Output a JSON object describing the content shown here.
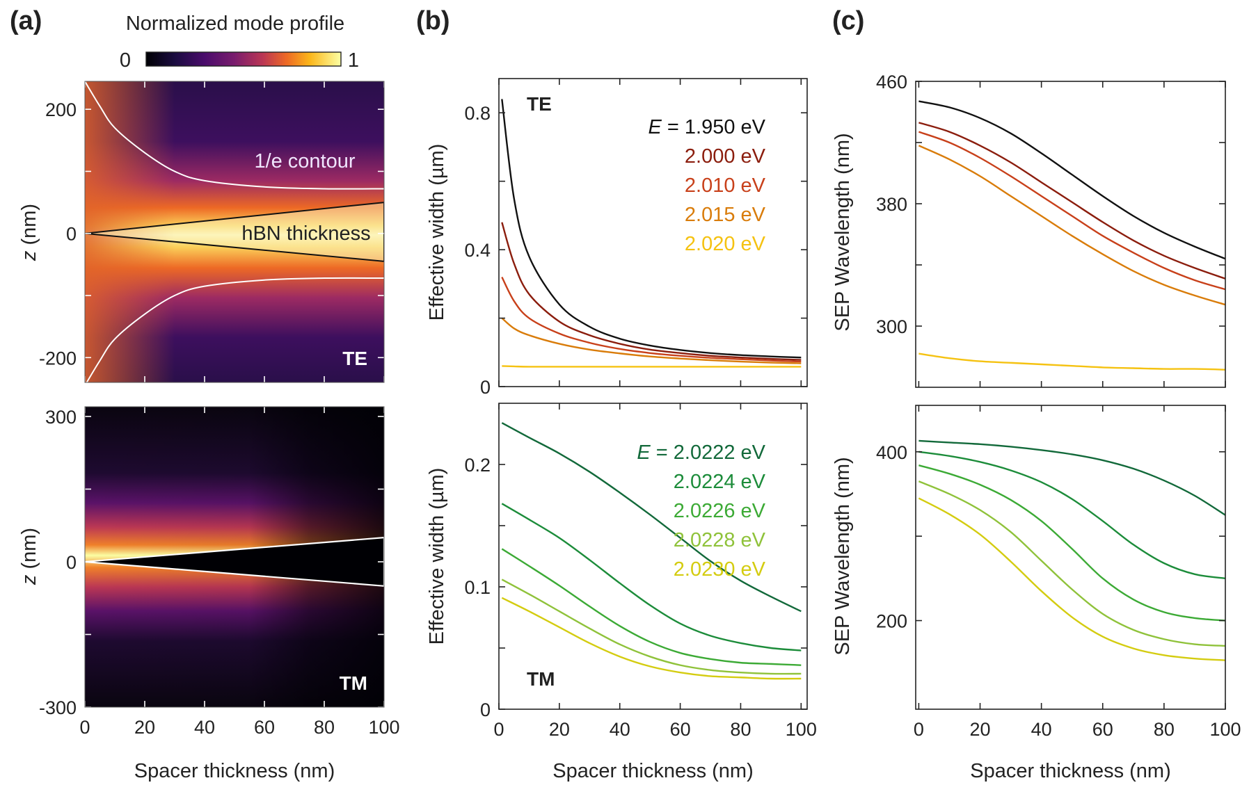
{
  "panel_labels": {
    "a": "(a)",
    "b": "(b)",
    "c": "(c)"
  },
  "colorbar": {
    "title": "Normalized mode profile",
    "min_label": "0",
    "max_label": "1"
  },
  "chart_data": [
    {
      "id": "a_te",
      "type": "heatmap",
      "panel": "(a)",
      "mode_label": "TE",
      "xlim": [
        0,
        100
      ],
      "ylim": [
        -240,
        245
      ],
      "xlabel": "Spacer thickness (nm)",
      "ylabel": "z (nm)",
      "yticks": [
        -200,
        0,
        200
      ],
      "annotations": {
        "contour": "1/e contour",
        "wedge": "hBN thickness"
      },
      "contour_1e": {
        "x": [
          0,
          5,
          10,
          20,
          30,
          40,
          60,
          80,
          100
        ],
        "z_upper": [
          245,
          205,
          170,
          130,
          100,
          85,
          75,
          72,
          72
        ]
      },
      "wedge": {
        "x": [
          0,
          100
        ],
        "z_top": [
          0,
          50
        ],
        "z_bottom": [
          0,
          -45
        ]
      }
    },
    {
      "id": "a_tm",
      "type": "heatmap",
      "panel": "(a)",
      "mode_label": "TM",
      "xlim": [
        0,
        100
      ],
      "ylim": [
        -300,
        320
      ],
      "xlabel": "Spacer thickness (nm)",
      "ylabel": "z (nm)",
      "xticks": [
        0,
        20,
        40,
        60,
        80,
        100
      ],
      "yticks": [
        -300,
        0,
        300
      ],
      "wedge": {
        "x": [
          0,
          100
        ],
        "z_top": [
          0,
          50
        ],
        "z_bottom": [
          0,
          -50
        ]
      }
    },
    {
      "id": "b_te",
      "type": "line",
      "panel": "(b)",
      "mode_label": "TE",
      "xlim": [
        0,
        102
      ],
      "ylim": [
        0,
        0.9
      ],
      "xlabel": "Spacer thickness (nm)",
      "ylabel": "Effective width (µm)",
      "yticks": [
        0,
        0.4,
        0.8
      ],
      "legend_title": "E = ",
      "x": [
        1,
        5,
        10,
        20,
        30,
        40,
        50,
        60,
        70,
        80,
        90,
        100
      ],
      "series": [
        {
          "name": "1.950 eV",
          "color": "#111111",
          "values": [
            0.84,
            0.55,
            0.38,
            0.24,
            0.175,
            0.14,
            0.12,
            0.107,
            0.098,
            0.092,
            0.088,
            0.085
          ]
        },
        {
          "name": "2.000 eV",
          "color": "#8b1d0d",
          "values": [
            0.48,
            0.36,
            0.27,
            0.19,
            0.15,
            0.125,
            0.108,
            0.098,
            0.09,
            0.085,
            0.081,
            0.078
          ]
        },
        {
          "name": "2.010 eV",
          "color": "#c8401a",
          "values": [
            0.32,
            0.25,
            0.2,
            0.155,
            0.128,
            0.11,
            0.098,
            0.09,
            0.084,
            0.08,
            0.076,
            0.073
          ]
        },
        {
          "name": "2.015 eV",
          "color": "#d97c0a",
          "values": [
            0.2,
            0.17,
            0.15,
            0.125,
            0.108,
            0.097,
            0.088,
            0.082,
            0.077,
            0.073,
            0.07,
            0.068
          ]
        },
        {
          "name": "2.020 eV",
          "color": "#f5c211",
          "values": [
            0.06,
            0.059,
            0.058,
            0.058,
            0.058,
            0.058,
            0.058,
            0.058,
            0.058,
            0.058,
            0.058,
            0.058
          ]
        }
      ]
    },
    {
      "id": "b_tm",
      "type": "line",
      "panel": "(b)",
      "mode_label": "TM",
      "xlim": [
        0,
        102
      ],
      "ylim": [
        0,
        0.25
      ],
      "xlabel": "Spacer thickness (nm)",
      "ylabel": "Effective width (µm)",
      "xticks": [
        0,
        20,
        40,
        60,
        80,
        100
      ],
      "yticks": [
        0,
        0.1,
        0.2
      ],
      "legend_title": "E = ",
      "x": [
        1,
        10,
        20,
        30,
        40,
        50,
        60,
        70,
        80,
        90,
        100
      ],
      "series": [
        {
          "name": "2.0222 eV",
          "color": "#12693a",
          "values": [
            0.234,
            0.222,
            0.209,
            0.194,
            0.177,
            0.159,
            0.14,
            0.121,
            0.105,
            0.092,
            0.08
          ]
        },
        {
          "name": "2.0224 eV",
          "color": "#1c8c3a",
          "values": [
            0.168,
            0.155,
            0.14,
            0.122,
            0.103,
            0.085,
            0.07,
            0.06,
            0.054,
            0.05,
            0.048
          ]
        },
        {
          "name": "2.0226 eV",
          "color": "#3caa35",
          "values": [
            0.131,
            0.117,
            0.101,
            0.084,
            0.068,
            0.055,
            0.046,
            0.041,
            0.038,
            0.037,
            0.036
          ]
        },
        {
          "name": "2.0228 eV",
          "color": "#8fc23a",
          "values": [
            0.106,
            0.094,
            0.08,
            0.066,
            0.053,
            0.043,
            0.036,
            0.032,
            0.03,
            0.029,
            0.029
          ]
        },
        {
          "name": "2.0230 eV",
          "color": "#d4cc10",
          "values": [
            0.091,
            0.08,
            0.067,
            0.054,
            0.043,
            0.035,
            0.03,
            0.027,
            0.026,
            0.025,
            0.025
          ]
        }
      ]
    },
    {
      "id": "c_te",
      "type": "line",
      "panel": "(c)",
      "xlim": [
        -1,
        100
      ],
      "ylim": [
        260,
        460
      ],
      "xlabel": "Spacer thickness (nm)",
      "ylabel": "SEP Wavelength (nm)",
      "yticks": [
        300,
        380,
        460
      ],
      "x": [
        0,
        10,
        20,
        30,
        40,
        50,
        60,
        70,
        80,
        90,
        100
      ],
      "series": [
        {
          "name": "1.950 eV",
          "color": "#111111",
          "values": [
            447,
            443,
            436,
            426,
            413,
            399,
            385,
            372,
            361,
            352,
            344
          ]
        },
        {
          "name": "2.000 eV",
          "color": "#8b1d0d",
          "values": [
            433,
            427,
            418,
            407,
            394,
            381,
            368,
            356,
            346,
            338,
            331
          ]
        },
        {
          "name": "2.010 eV",
          "color": "#c8401a",
          "values": [
            427,
            420,
            410,
            398,
            385,
            372,
            359,
            348,
            338,
            330,
            324
          ]
        },
        {
          "name": "2.015 eV",
          "color": "#d97c0a",
          "values": [
            418,
            409,
            398,
            385,
            372,
            359,
            347,
            336,
            327,
            320,
            314
          ]
        },
        {
          "name": "2.020 eV",
          "color": "#f5c211",
          "values": [
            282,
            279,
            277,
            276,
            275,
            274,
            273,
            272.5,
            272,
            272,
            271.5
          ]
        }
      ]
    },
    {
      "id": "c_tm",
      "type": "line",
      "panel": "(c)",
      "xlim": [
        -1,
        100
      ],
      "ylim": [
        95,
        455
      ],
      "xlabel": "Spacer thickness (nm)",
      "ylabel": "SEP Wavelength (nm)",
      "xticks": [
        0,
        20,
        40,
        60,
        80,
        100
      ],
      "yticks": [
        200,
        400
      ],
      "x": [
        0,
        10,
        20,
        30,
        40,
        50,
        60,
        70,
        80,
        90,
        100
      ],
      "series": [
        {
          "name": "2.0222 eV",
          "color": "#12693a",
          "values": [
            413,
            411,
            409,
            406,
            402,
            397,
            390,
            380,
            366,
            348,
            325
          ]
        },
        {
          "name": "2.0224 eV",
          "color": "#1c8c3a",
          "values": [
            400,
            395,
            388,
            378,
            364,
            344,
            318,
            290,
            268,
            255,
            250
          ]
        },
        {
          "name": "2.0226 eV",
          "color": "#3caa35",
          "values": [
            384,
            374,
            361,
            343,
            318,
            285,
            250,
            225,
            210,
            203,
            200
          ]
        },
        {
          "name": "2.0228 eV",
          "color": "#8fc23a",
          "values": [
            365,
            350,
            331,
            305,
            271,
            237,
            208,
            189,
            178,
            172,
            170
          ]
        },
        {
          "name": "2.0230 eV",
          "color": "#d4cc10",
          "values": [
            345,
            326,
            302,
            270,
            235,
            204,
            181,
            167,
            159,
            155,
            153
          ]
        }
      ]
    }
  ]
}
